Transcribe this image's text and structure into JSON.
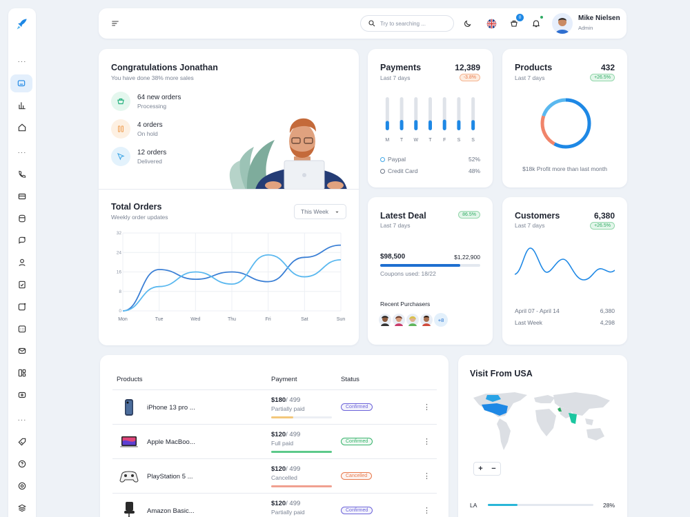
{
  "header": {
    "search_placeholder": "Try to searching ...",
    "cart_count": "0",
    "user_name": "Mike Nielsen",
    "user_role": "Admin"
  },
  "congrats": {
    "title": "Congratulations Jonathan",
    "subtitle": "You have done 38% more sales",
    "orders": [
      {
        "title": "64 new orders",
        "status": "Processing",
        "color": "#22b07d",
        "bg": "#e4f7ee"
      },
      {
        "title": "4 orders",
        "status": "On hold",
        "color": "#f0a35a",
        "bg": "#fdf0e2"
      },
      {
        "title": "12 orders",
        "status": "Delivered",
        "color": "#3fa6e6",
        "bg": "#e3f2fc"
      }
    ]
  },
  "total_orders": {
    "title": "Total Orders",
    "subtitle": "Weekly order updates",
    "range_label": "This Week"
  },
  "chart_data": {
    "type": "line",
    "categories": [
      "Mon",
      "Tue",
      "Wed",
      "Thu",
      "Fri",
      "Sat",
      "Sun"
    ],
    "ylim": [
      0,
      32
    ],
    "yticks": [
      "0",
      "8",
      "16",
      "24",
      "32"
    ],
    "series": [
      {
        "color": "#3a7fd5",
        "values": [
          0,
          17,
          13,
          16,
          12,
          22,
          27
        ]
      },
      {
        "color": "#5ab8ef",
        "values": [
          0,
          10,
          16,
          11,
          23,
          14,
          21
        ]
      }
    ]
  },
  "payments": {
    "title": "Payments",
    "subtitle": "Last 7 days",
    "value": "12,389",
    "change": "-3.8%",
    "days": [
      "M",
      "T",
      "W",
      "T",
      "F",
      "S",
      "S"
    ],
    "bars": [
      0.45,
      0.62,
      0.6,
      0.55,
      0.68,
      0.58,
      0.6
    ],
    "legend": [
      {
        "label": "Paypal",
        "value": "52%",
        "color": "#3fa6e6"
      },
      {
        "label": "Credit Card",
        "value": "48%",
        "color": "#6b7484"
      }
    ]
  },
  "products_stat": {
    "title": "Products",
    "subtitle": "Last 7 days",
    "value": "432",
    "change": "+26.5%",
    "donut_fractions": [
      0.58,
      0.22,
      0.2
    ],
    "donut_colors": [
      "#1e88e5",
      "#f0846a",
      "#5ab8ef"
    ],
    "note": "$18k Profit more than last month"
  },
  "latest_deal": {
    "title": "Latest Deal",
    "subtitle": "Last 7 days",
    "change": "86.5%",
    "amount": "$98,500",
    "target": "$1,22,900",
    "progress": 0.8,
    "coupons": "Coupons used: 18/22",
    "recent_label": "Recent Purchasers",
    "more_count": "+8"
  },
  "customers": {
    "title": "Customers",
    "subtitle": "Last 7 days",
    "value": "6,380",
    "change": "+26.5%",
    "rows": [
      {
        "label": "April 07 - April 14",
        "value": "6,380"
      },
      {
        "label": "Last Week",
        "value": "4,298"
      }
    ]
  },
  "products_table": {
    "headers": [
      "Products",
      "Payment",
      "Status"
    ],
    "rows": [
      {
        "name": "iPhone 13 pro ...",
        "price": "$180",
        "total": "/ 499",
        "payment": "Partially paid",
        "bar_color": "#f3c77a",
        "bar_fill": 0.36,
        "status": "Confirmed",
        "status_color": "#6c63d9"
      },
      {
        "name": "Apple MacBoo...",
        "price": "$120",
        "total": "/ 499",
        "payment": "Full paid",
        "bar_color": "#5cc98a",
        "bar_fill": 1.0,
        "status": "Confirmed",
        "status_color": "#36b36b"
      },
      {
        "name": "PlayStation 5 ...",
        "price": "$120",
        "total": "/ 499",
        "payment": "Cancelled",
        "bar_color": "#f0a090",
        "bar_fill": 1.0,
        "status": "Cancelled",
        "status_color": "#e8794b"
      },
      {
        "name": "Amazon Basic...",
        "price": "$120",
        "total": "/ 499",
        "payment": "Partially paid",
        "bar_color": "#f3c77a",
        "bar_fill": 0.3,
        "status": "Confirmed",
        "status_color": "#6c63d9"
      }
    ]
  },
  "visit_usa": {
    "title": "Visit From USA",
    "state": "LA",
    "percent": "28%",
    "progress": 0.28
  }
}
